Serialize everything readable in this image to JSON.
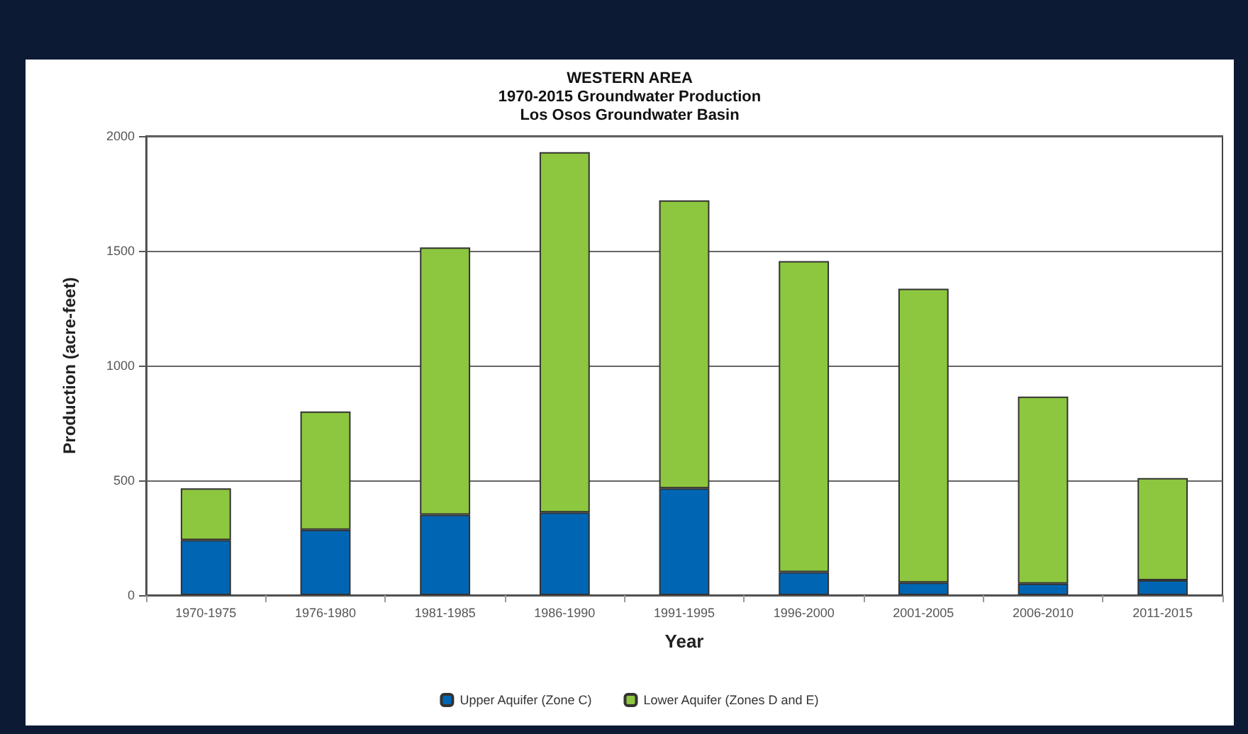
{
  "chart_data": {
    "type": "bar",
    "title": "WESTERN AREA\n1970-2015 Groundwater Production\nLos Osos Groundwater Basin",
    "xlabel": "Year",
    "ylabel": "Production (acre-feet)",
    "categories": [
      "1970-1975",
      "1976-1980",
      "1981-1985",
      "1986-1990",
      "1991-1995",
      "1996-2000",
      "2001-2005",
      "2006-2010",
      "2011-2015"
    ],
    "series": [
      {
        "name": "Upper Aquifer (Zone C)",
        "color": "#0066b3",
        "values": [
          240,
          285,
          350,
          360,
          465,
          100,
          55,
          50,
          65
        ]
      },
      {
        "name": "Lower Aquifer (Zones D and E)",
        "color": "#8dc63f",
        "values": [
          225,
          515,
          1165,
          1570,
          1255,
          1355,
          1280,
          815,
          445
        ]
      }
    ],
    "stacked": true,
    "ylim": [
      0,
      2000
    ],
    "yticks": [
      0,
      500,
      1000,
      1500,
      2000
    ],
    "grid": "y",
    "legend": "bottom"
  }
}
